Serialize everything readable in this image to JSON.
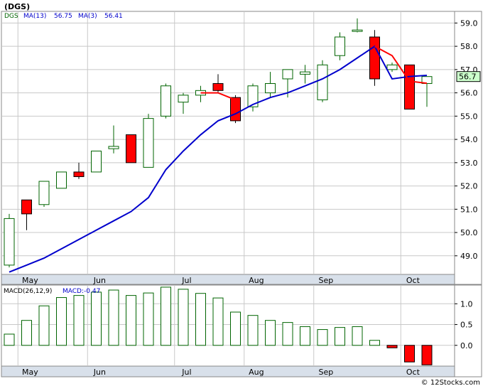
{
  "title": "(DGS)",
  "watermark": "© 12Stocks.com",
  "colors": {
    "up_outline": "#006400",
    "down_fill": "#ff0000",
    "ma_long": "#0000cc",
    "ma_short": "#ff0000",
    "grid": "#c8c8c8",
    "axis_band": "#d8e0ea",
    "last_price_bg": "#ccffcc"
  },
  "chart_data": [
    {
      "type": "candlestick",
      "legend": {
        "symbol": "DGS",
        "ma_long_label": "MA(13)",
        "ma_long_value": "56.75",
        "ma_short_label": "MA(3)",
        "ma_short_value": "56.41"
      },
      "last_price_label": "56.7",
      "ylim": [
        48.2,
        59.5
      ],
      "yticks": [
        49.0,
        50.0,
        51.0,
        52.0,
        53.0,
        54.0,
        55.0,
        56.0,
        57.0,
        58.0,
        59.0
      ],
      "ytick_labels": [
        "49.0",
        "50.0",
        "51.0",
        "52.0",
        "53.0",
        "54.0",
        "55.0",
        "56.0",
        "57.0",
        "58.0",
        "59.0"
      ],
      "xlabels": [
        {
          "label": "May",
          "index": 1.2
        },
        {
          "label": "Jun",
          "index": 5.2
        },
        {
          "label": "Jul",
          "index": 10.2
        },
        {
          "label": "Aug",
          "index": 14.2
        },
        {
          "label": "Sep",
          "index": 18.2
        },
        {
          "label": "Oct",
          "index": 23.2
        }
      ],
      "candles": [
        {
          "o": 48.6,
          "h": 50.8,
          "l": 48.5,
          "c": 50.6
        },
        {
          "o": 51.4,
          "h": 51.4,
          "l": 50.1,
          "c": 50.8
        },
        {
          "o": 51.2,
          "h": 52.2,
          "l": 51.1,
          "c": 52.2
        },
        {
          "o": 51.9,
          "h": 52.6,
          "l": 51.9,
          "c": 52.6
        },
        {
          "o": 52.6,
          "h": 53.0,
          "l": 52.3,
          "c": 52.4
        },
        {
          "o": 52.6,
          "h": 53.5,
          "l": 52.6,
          "c": 53.5
        },
        {
          "o": 53.6,
          "h": 54.6,
          "l": 53.4,
          "c": 53.7
        },
        {
          "o": 54.2,
          "h": 54.2,
          "l": 53.0,
          "c": 53.0
        },
        {
          "o": 52.8,
          "h": 55.1,
          "l": 52.8,
          "c": 54.9
        },
        {
          "o": 55.0,
          "h": 56.4,
          "l": 54.9,
          "c": 56.3
        },
        {
          "o": 55.6,
          "h": 56.0,
          "l": 55.1,
          "c": 55.9
        },
        {
          "o": 55.9,
          "h": 56.3,
          "l": 55.6,
          "c": 56.1
        },
        {
          "o": 56.4,
          "h": 56.8,
          "l": 56.0,
          "c": 56.1
        },
        {
          "o": 55.8,
          "h": 55.9,
          "l": 54.7,
          "c": 54.8
        },
        {
          "o": 55.4,
          "h": 56.4,
          "l": 55.2,
          "c": 56.3
        },
        {
          "o": 56.0,
          "h": 56.9,
          "l": 55.8,
          "c": 56.4
        },
        {
          "o": 56.6,
          "h": 57.0,
          "l": 55.8,
          "c": 57.0
        },
        {
          "o": 56.8,
          "h": 57.2,
          "l": 56.4,
          "c": 56.9
        },
        {
          "o": 55.7,
          "h": 57.4,
          "l": 55.6,
          "c": 57.2
        },
        {
          "o": 57.6,
          "h": 58.6,
          "l": 57.4,
          "c": 58.4
        },
        {
          "o": 58.7,
          "h": 59.2,
          "l": 58.6,
          "c": 58.7
        },
        {
          "o": 58.4,
          "h": 58.7,
          "l": 56.3,
          "c": 56.6
        },
        {
          "o": 57.0,
          "h": 57.3,
          "l": 56.9,
          "c": 57.2
        },
        {
          "o": 57.2,
          "h": 57.2,
          "l": 55.3,
          "c": 55.3
        },
        {
          "o": 56.4,
          "h": 56.7,
          "l": 55.4,
          "c": 56.7
        }
      ],
      "series": [
        {
          "key": "ma13",
          "values": [
            48.3,
            48.6,
            48.9,
            49.3,
            49.7,
            50.1,
            50.5,
            50.9,
            51.5,
            52.7,
            53.5,
            54.2,
            54.8,
            55.1,
            55.5,
            55.8,
            56.0,
            56.3,
            56.6,
            57.0,
            57.5,
            58.0,
            56.6,
            56.7,
            56.75
          ]
        },
        {
          "key": "ma3",
          "values": [
            null,
            null,
            null,
            null,
            null,
            null,
            null,
            null,
            null,
            null,
            null,
            56.0,
            56.0,
            55.7,
            null,
            null,
            null,
            null,
            null,
            null,
            null,
            58.0,
            57.6,
            56.5,
            56.41
          ]
        }
      ]
    },
    {
      "type": "bar",
      "legend": {
        "label": "MACD(26,12,9)",
        "value_label": "MACD:-0.47"
      },
      "ylim": [
        -0.5,
        1.45
      ],
      "yticks": [
        0.0,
        0.5,
        1.0
      ],
      "ytick_labels": [
        "0.0",
        "0.5",
        "1.0"
      ],
      "values": [
        0.27,
        0.6,
        0.95,
        1.15,
        1.2,
        1.28,
        1.33,
        1.2,
        1.26,
        1.4,
        1.35,
        1.25,
        1.14,
        0.8,
        0.72,
        0.6,
        0.55,
        0.45,
        0.38,
        0.43,
        0.45,
        0.12,
        -0.06,
        -0.4,
        -0.47
      ]
    }
  ]
}
